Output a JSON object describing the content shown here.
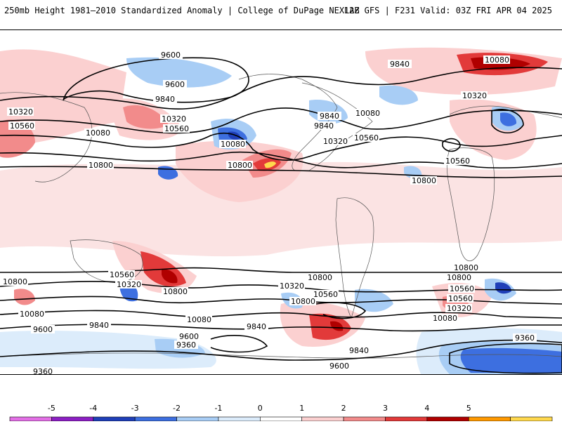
{
  "header": {
    "title": "250mb Height 1981–2010 Standardized Anomaly | College of DuPage NEXLAB",
    "run_info": "12Z GFS | F231 Valid: 03Z FRI APR 04 2025"
  },
  "contour_labels": [
    {
      "text": "9600"
    },
    {
      "text": "9600"
    },
    {
      "text": "9840"
    },
    {
      "text": "9840"
    },
    {
      "text": "10080"
    },
    {
      "text": "10320"
    },
    {
      "text": "10320"
    },
    {
      "text": "10560"
    },
    {
      "text": "10560"
    },
    {
      "text": "10080"
    },
    {
      "text": "10080"
    },
    {
      "text": "9840"
    },
    {
      "text": "10800"
    },
    {
      "text": "10800"
    },
    {
      "text": "10800"
    },
    {
      "text": "10320"
    },
    {
      "text": "10560"
    },
    {
      "text": "10080"
    },
    {
      "text": "9840"
    },
    {
      "text": "10320"
    },
    {
      "text": "10560"
    },
    {
      "text": "10560"
    },
    {
      "text": "10800"
    },
    {
      "text": "10800"
    },
    {
      "text": "10560"
    },
    {
      "text": "10320"
    },
    {
      "text": "10800"
    },
    {
      "text": "10800"
    },
    {
      "text": "10080"
    },
    {
      "text": "9600"
    },
    {
      "text": "9840"
    },
    {
      "text": "9600"
    },
    {
      "text": "9360"
    },
    {
      "text": "10080"
    },
    {
      "text": "9840"
    },
    {
      "text": "10320"
    },
    {
      "text": "10560"
    },
    {
      "text": "10800"
    },
    {
      "text": "10800"
    },
    {
      "text": "10560"
    },
    {
      "text": "10320"
    },
    {
      "text": "10080"
    },
    {
      "text": "9840"
    },
    {
      "text": "9600"
    },
    {
      "text": "9360"
    },
    {
      "text": "9360"
    }
  ],
  "colorbar": {
    "ticks": [
      "-5",
      "-4",
      "-3",
      "-2",
      "-1",
      "0",
      "1",
      "2",
      "3",
      "4",
      "5"
    ],
    "colors": [
      "#e36fe6",
      "#8c1fc4",
      "#1f3fb8",
      "#3d6fe0",
      "#a8cdf5",
      "#dcecfb",
      "#ffffff",
      "#fbd0d0",
      "#f28b8b",
      "#e23a3a",
      "#b00000",
      "#ff9900",
      "#ffd84d"
    ]
  }
}
